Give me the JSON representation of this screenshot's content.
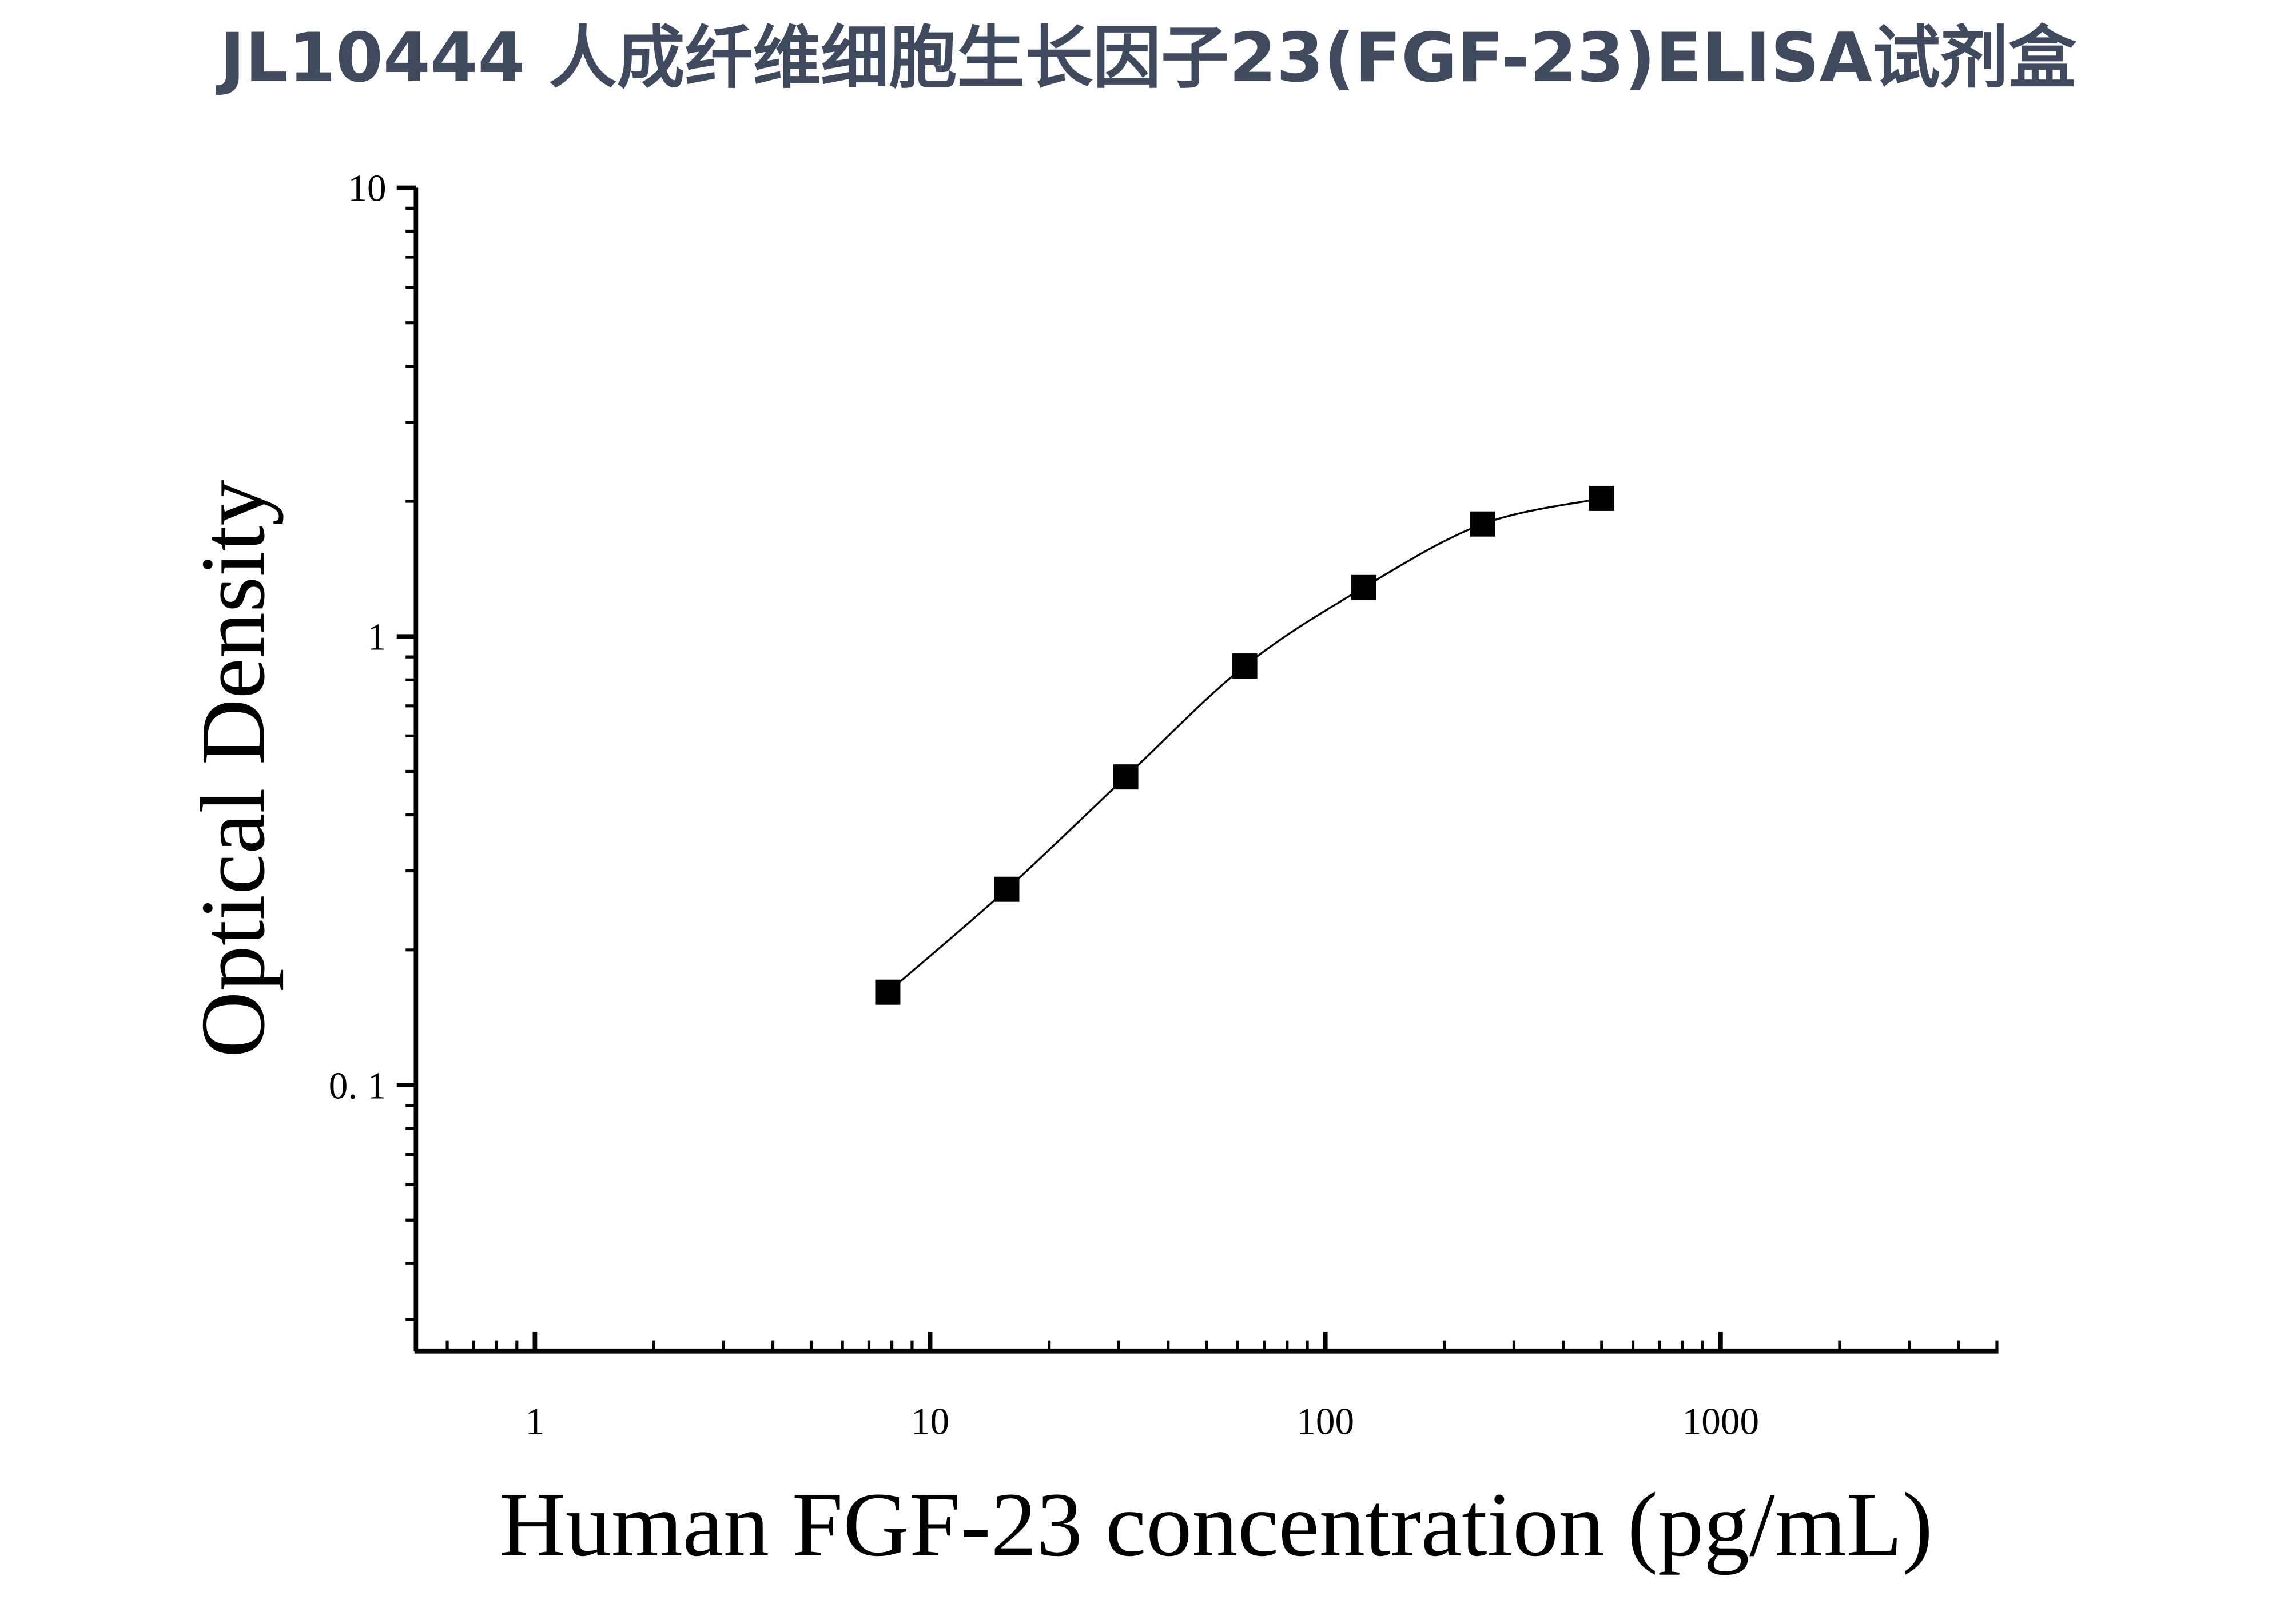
{
  "chart_data": {
    "type": "scatter",
    "title": "JL10444 人成纤维细胞生长因子23(FGF-23)ELISA试剂盒",
    "x_label": "Human FGF-23 concentration (pg/mL)",
    "y_label": "Optical Density",
    "x": [
      7.8125,
      15.625,
      31.25,
      62.5,
      125,
      250,
      500
    ],
    "series": [
      {
        "color": "#000000",
        "values": [
          0.161,
          0.273,
          0.486,
          0.859,
          1.285,
          1.78,
          2.03
        ]
      }
    ],
    "xscale": "log",
    "yscale": "log",
    "xlim": [
      0.5,
      5000
    ],
    "ylim": [
      0.0255,
      10
    ],
    "xticks": [
      1,
      10,
      100,
      1000
    ],
    "yticks": [
      {
        "value": 0.1,
        "label": "0. 1"
      },
      1,
      10
    ],
    "fit_line": true
  }
}
